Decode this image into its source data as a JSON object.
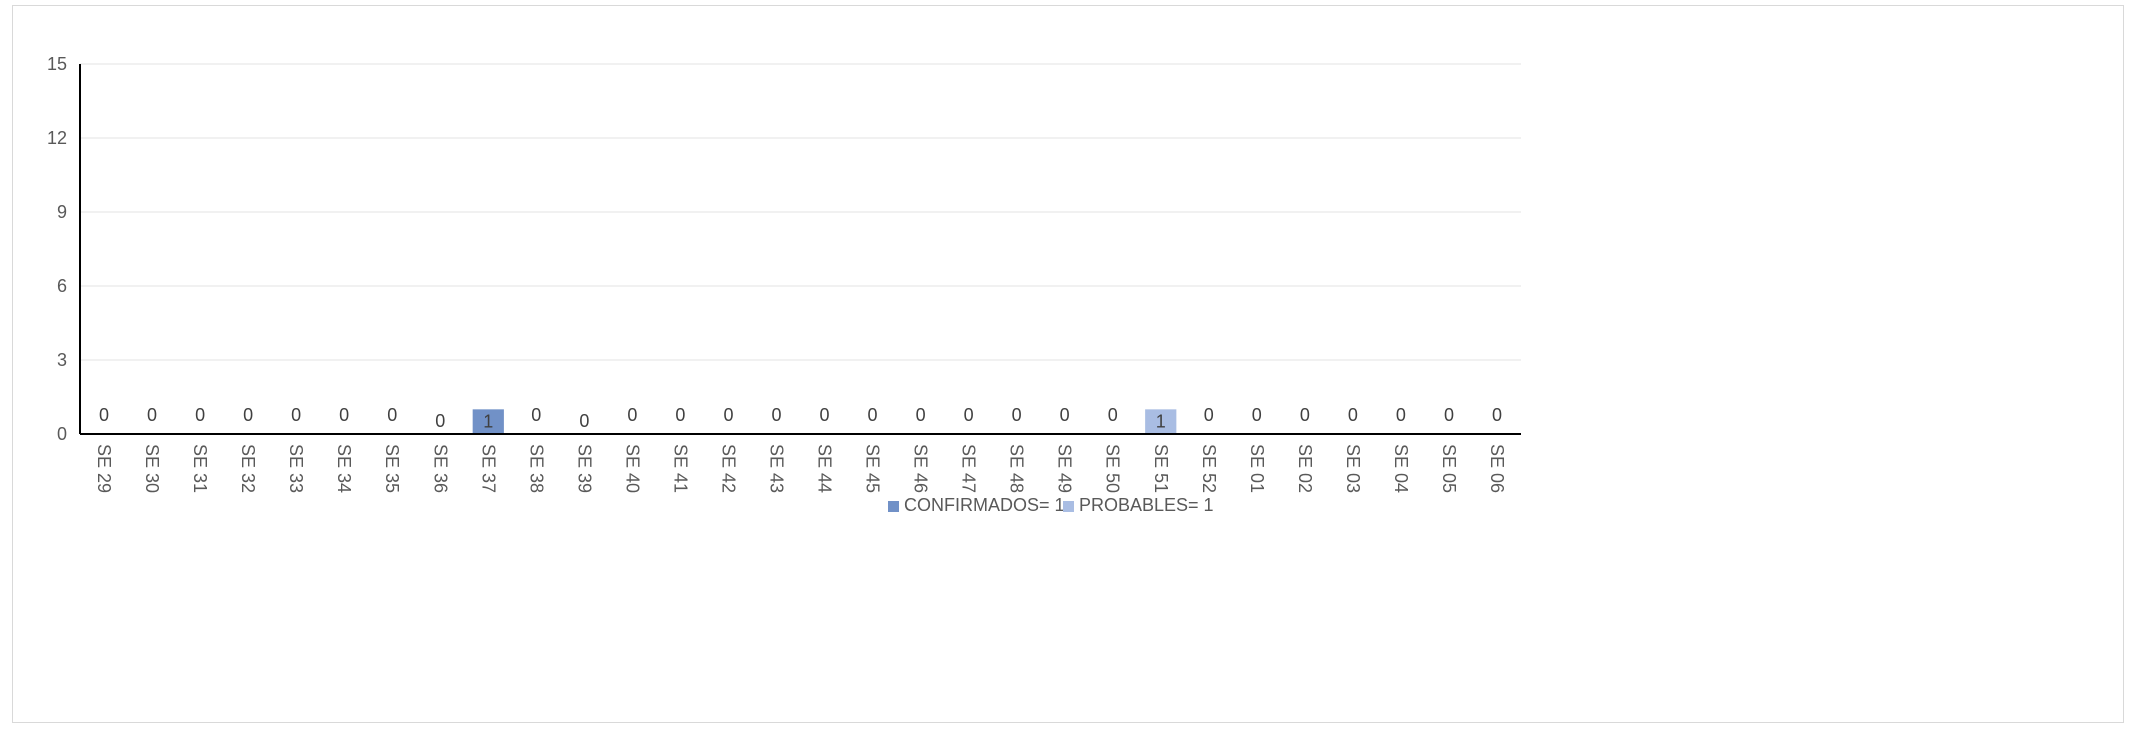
{
  "chart_data": {
    "type": "bar",
    "categories": [
      "SE 29",
      "SE 30",
      "SE 31",
      "SE 32",
      "SE 33",
      "SE 34",
      "SE 35",
      "SE 36",
      "SE 37",
      "SE 38",
      "SE 39",
      "SE 40",
      "SE 41",
      "SE 42",
      "SE 43",
      "SE 44",
      "SE 45",
      "SE 46",
      "SE 47",
      "SE 48",
      "SE 49",
      "SE 50",
      "SE 51",
      "SE 52",
      "SE 01",
      "SE 02",
      "SE 03",
      "SE 04",
      "SE 05",
      "SE 06"
    ],
    "series": [
      {
        "name": "CONFIRMADOS= 1",
        "color": "#7191c7",
        "values": [
          0,
          0,
          0,
          0,
          0,
          0,
          0,
          0,
          1,
          0,
          0,
          0,
          0,
          0,
          0,
          0,
          0,
          0,
          0,
          0,
          0,
          0,
          0,
          0,
          0,
          0,
          0,
          0,
          0,
          0
        ]
      },
      {
        "name": "PROBABLES= 1",
        "color": "#a9bde3",
        "values": [
          0,
          0,
          0,
          0,
          0,
          0,
          0,
          0,
          0,
          0,
          0,
          0,
          0,
          0,
          0,
          0,
          0,
          0,
          0,
          0,
          0,
          0,
          1,
          0,
          0,
          0,
          0,
          0,
          0,
          0
        ]
      }
    ],
    "stacked": true,
    "data_labels": [
      "0",
      "0",
      "0",
      "0",
      "0",
      "0",
      "0",
      "0",
      "1",
      "0",
      "0",
      "0",
      "0",
      "0",
      "0",
      "0",
      "0",
      "0",
      "0",
      "0",
      "0",
      "0",
      "1",
      "0",
      "0",
      "0",
      "0",
      "0",
      "0",
      "0"
    ],
    "ylim": [
      0,
      15
    ],
    "yticks": [
      "0",
      "3",
      "6",
      "9",
      "12",
      "15"
    ],
    "grid": true,
    "legend_position": "bottom",
    "title": "",
    "xlabel": "",
    "ylabel": ""
  }
}
